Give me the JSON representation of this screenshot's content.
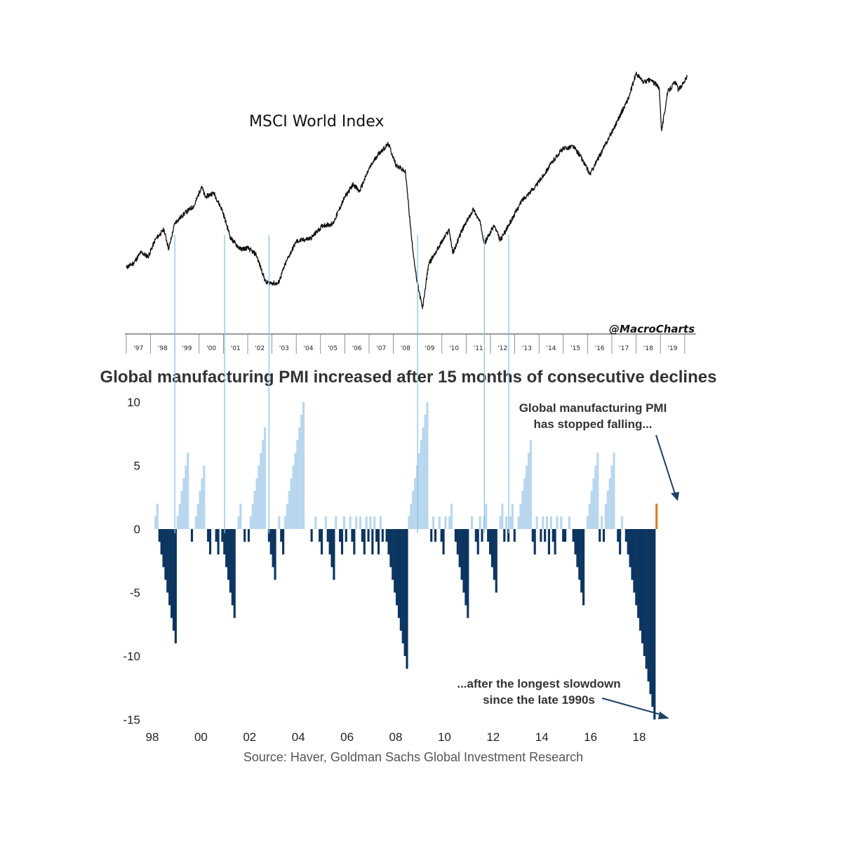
{
  "colors": {
    "positive": "#b8d7ee",
    "negative": "#0c3560",
    "latest": "#e07a1f",
    "price_line": "#111111",
    "guide_line": "#8ec3e6"
  },
  "chart_data": [
    {
      "type": "line",
      "title": "MSCI World Index",
      "credit": "@MacroCharts",
      "x_tick_labels": [
        "'97",
        "'98",
        "'99",
        "'00",
        "'01",
        "'02",
        "'03",
        "'04",
        "'05",
        "'06",
        "'07",
        "'08",
        "'09",
        "'10",
        "'11",
        "'12",
        "'13",
        "'14",
        "'15",
        "'16",
        "'17",
        "'18",
        "'19"
      ],
      "anchor_points": [
        {
          "x": 1997.0,
          "y": 1060
        },
        {
          "x": 1997.3,
          "y": 1080
        },
        {
          "x": 1997.6,
          "y": 1130
        },
        {
          "x": 1997.9,
          "y": 1110
        },
        {
          "x": 1998.2,
          "y": 1190
        },
        {
          "x": 1998.55,
          "y": 1235
        },
        {
          "x": 1998.75,
          "y": 1145
        },
        {
          "x": 1999.0,
          "y": 1265
        },
        {
          "x": 1999.4,
          "y": 1310
        },
        {
          "x": 1999.8,
          "y": 1345
        },
        {
          "x": 2000.1,
          "y": 1435
        },
        {
          "x": 2000.25,
          "y": 1385
        },
        {
          "x": 2000.6,
          "y": 1405
        },
        {
          "x": 2000.95,
          "y": 1325
        },
        {
          "x": 2001.3,
          "y": 1195
        },
        {
          "x": 2001.7,
          "y": 1145
        },
        {
          "x": 2002.0,
          "y": 1150
        },
        {
          "x": 2002.35,
          "y": 1120
        },
        {
          "x": 2002.75,
          "y": 990
        },
        {
          "x": 2002.95,
          "y": 990
        },
        {
          "x": 2003.25,
          "y": 985
        },
        {
          "x": 2003.6,
          "y": 1090
        },
        {
          "x": 2004.0,
          "y": 1180
        },
        {
          "x": 2004.6,
          "y": 1195
        },
        {
          "x": 2005.1,
          "y": 1255
        },
        {
          "x": 2005.5,
          "y": 1260
        },
        {
          "x": 2006.0,
          "y": 1385
        },
        {
          "x": 2006.35,
          "y": 1445
        },
        {
          "x": 2006.6,
          "y": 1410
        },
        {
          "x": 2007.0,
          "y": 1515
        },
        {
          "x": 2007.35,
          "y": 1580
        },
        {
          "x": 2007.8,
          "y": 1630
        },
        {
          "x": 2008.1,
          "y": 1535
        },
        {
          "x": 2008.5,
          "y": 1500
        },
        {
          "x": 2008.75,
          "y": 1195
        },
        {
          "x": 2008.95,
          "y": 1010
        },
        {
          "x": 2009.2,
          "y": 870
        },
        {
          "x": 2009.45,
          "y": 1075
        },
        {
          "x": 2009.9,
          "y": 1160
        },
        {
          "x": 2010.3,
          "y": 1235
        },
        {
          "x": 2010.45,
          "y": 1125
        },
        {
          "x": 2010.8,
          "y": 1225
        },
        {
          "x": 2011.3,
          "y": 1330
        },
        {
          "x": 2011.6,
          "y": 1260
        },
        {
          "x": 2011.75,
          "y": 1170
        },
        {
          "x": 2012.15,
          "y": 1255
        },
        {
          "x": 2012.4,
          "y": 1185
        },
        {
          "x": 2012.8,
          "y": 1265
        },
        {
          "x": 2013.3,
          "y": 1370
        },
        {
          "x": 2013.9,
          "y": 1440
        },
        {
          "x": 2014.6,
          "y": 1555
        },
        {
          "x": 2014.95,
          "y": 1605
        },
        {
          "x": 2015.4,
          "y": 1620
        },
        {
          "x": 2015.7,
          "y": 1575
        },
        {
          "x": 2016.1,
          "y": 1490
        },
        {
          "x": 2016.4,
          "y": 1555
        },
        {
          "x": 2016.7,
          "y": 1620
        },
        {
          "x": 2017.2,
          "y": 1730
        },
        {
          "x": 2017.7,
          "y": 1845
        },
        {
          "x": 2018.0,
          "y": 1955
        },
        {
          "x": 2018.3,
          "y": 1915
        },
        {
          "x": 2018.6,
          "y": 1925
        },
        {
          "x": 2018.95,
          "y": 1890
        },
        {
          "x": 2019.05,
          "y": 1690
        },
        {
          "x": 2019.3,
          "y": 1870
        },
        {
          "x": 2019.6,
          "y": 1915
        },
        {
          "x": 2019.75,
          "y": 1880
        },
        {
          "x": 2019.9,
          "y": 1905
        },
        {
          "x": 2020.1,
          "y": 1940
        }
      ]
    },
    {
      "type": "bar",
      "title": "Global manufacturing PMI increased after 15 months of consecutive declines",
      "xlabel": "",
      "ylabel": "",
      "ylim": [
        -15,
        10
      ],
      "y_ticks": [
        10,
        5,
        0,
        -5,
        -10,
        -15
      ],
      "x_tick_labels": [
        "98",
        "00",
        "02",
        "04",
        "06",
        "08",
        "10",
        "12",
        "14",
        "16",
        "18"
      ],
      "start_year": 1998.0,
      "months_per_year": 12,
      "values": [
        0,
        1,
        2,
        -1,
        -2,
        -3,
        -4,
        -5,
        -6,
        -7,
        -8,
        -9,
        1,
        2,
        3,
        4,
        5,
        6,
        0,
        -1,
        0,
        1,
        2,
        3,
        4,
        5,
        0,
        -1,
        -2,
        0,
        0,
        -1,
        -2,
        0,
        -1,
        -2,
        -3,
        -4,
        -5,
        -6,
        -7,
        0,
        1,
        2,
        0,
        -1,
        0,
        -1,
        1,
        2,
        3,
        4,
        5,
        6,
        7,
        8,
        0,
        -1,
        -2,
        -3,
        -4,
        0,
        1,
        -1,
        -2,
        1,
        2,
        3,
        4,
        5,
        6,
        7,
        8,
        9,
        10,
        0,
        0,
        0,
        -1,
        0,
        1,
        0,
        -1,
        -2,
        0,
        1,
        -1,
        -2,
        -3,
        -4,
        1,
        0,
        -1,
        -2,
        1,
        -1,
        0,
        1,
        -1,
        -2,
        1,
        0,
        1,
        -1,
        -2,
        1,
        -1,
        1,
        -2,
        1,
        -1,
        -2,
        1,
        -1,
        0,
        -1,
        -2,
        -3,
        -4,
        -5,
        -6,
        -7,
        -8,
        -9,
        -10,
        -11,
        1,
        2,
        3,
        4,
        5,
        6,
        7,
        8,
        9,
        10,
        0,
        -1,
        1,
        -1,
        0,
        1,
        -1,
        -2,
        1,
        0,
        1,
        2,
        0,
        -1,
        -2,
        -3,
        -4,
        -5,
        -6,
        -7,
        0,
        1,
        0,
        -1,
        -2,
        1,
        -1,
        1,
        2,
        -1,
        -2,
        -3,
        -4,
        -5,
        0,
        1,
        2,
        -1,
        1,
        -1,
        1,
        2,
        -1,
        0,
        1,
        2,
        3,
        4,
        5,
        6,
        7,
        -1,
        -2,
        1,
        0,
        -1,
        1,
        -1,
        1,
        -2,
        1,
        -1,
        -2,
        1,
        0,
        1,
        -1,
        -1,
        0,
        1,
        0,
        -1,
        -2,
        -3,
        -4,
        -5,
        -6,
        0,
        1,
        2,
        3,
        4,
        5,
        6,
        -1,
        1,
        -1,
        2,
        3,
        4,
        5,
        6,
        0,
        -1,
        -2,
        1,
        0,
        -1,
        -2,
        -3,
        -4,
        -5,
        -6,
        -7,
        -8,
        -9,
        -10,
        -11,
        -12,
        -13,
        -14,
        -15,
        2
      ],
      "latest_bar_highlighted": true
    }
  ],
  "annotations": {
    "stopped_line1": "Global  manufacturing PMI",
    "stopped_line2": "has stopped falling...",
    "slowdown_line1": "...after the longest slowdown",
    "slowdown_line2": "since the late 1990s"
  },
  "source": "Source: Haver, Goldman Sachs Global Investment Research",
  "guide_line_years": [
    1999.0,
    2001.05,
    2002.88,
    2009.0,
    2011.75,
    2012.75
  ]
}
